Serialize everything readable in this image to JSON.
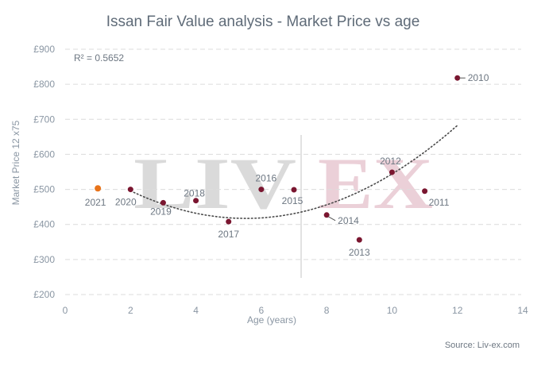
{
  "chart_data": {
    "type": "scatter",
    "title": "Issan Fair Value analysis - Market Price vs age",
    "xlabel": "Age (years)",
    "ylabel": "Market Price 12 x75",
    "xlim": [
      0,
      14
    ],
    "ylim": [
      200,
      900
    ],
    "x_ticks": [
      0,
      2,
      4,
      6,
      8,
      10,
      12,
      14
    ],
    "y_ticks": [
      200,
      300,
      400,
      500,
      600,
      700,
      800,
      900
    ],
    "y_tick_labels": [
      "£200",
      "£300",
      "£400",
      "£500",
      "£600",
      "£700",
      "£800",
      "£900"
    ],
    "grid": "horizontal dashed",
    "r_squared_label": "R² = 0.5652",
    "trendline": {
      "type": "polynomial",
      "style": "dotted",
      "x_range": [
        2,
        12
      ]
    },
    "points": [
      {
        "label": "2010",
        "x": 12,
        "y": 818,
        "highlight": false
      },
      {
        "label": "2011",
        "x": 11,
        "y": 495,
        "highlight": false
      },
      {
        "label": "2012",
        "x": 10,
        "y": 549,
        "highlight": false
      },
      {
        "label": "2013",
        "x": 9,
        "y": 356,
        "highlight": false
      },
      {
        "label": "2014",
        "x": 8,
        "y": 427,
        "highlight": false
      },
      {
        "label": "2015",
        "x": 7,
        "y": 499,
        "highlight": false
      },
      {
        "label": "2016",
        "x": 6,
        "y": 500,
        "highlight": false
      },
      {
        "label": "2017",
        "x": 5,
        "y": 408,
        "highlight": false
      },
      {
        "label": "2018",
        "x": 4,
        "y": 468,
        "highlight": false
      },
      {
        "label": "2019",
        "x": 3,
        "y": 462,
        "highlight": false
      },
      {
        "label": "2020",
        "x": 2,
        "y": 500,
        "highlight": false
      },
      {
        "label": "2021",
        "x": 1,
        "y": 503,
        "highlight": true
      }
    ],
    "colors": {
      "point": "#7a1630",
      "highlight": "#e8731a",
      "trend": "#4a4a4a",
      "grid": "#dcdcdc"
    },
    "source": "Source: Liv-ex.com"
  },
  "watermark": {
    "left": "LIV",
    "right": "EX"
  }
}
